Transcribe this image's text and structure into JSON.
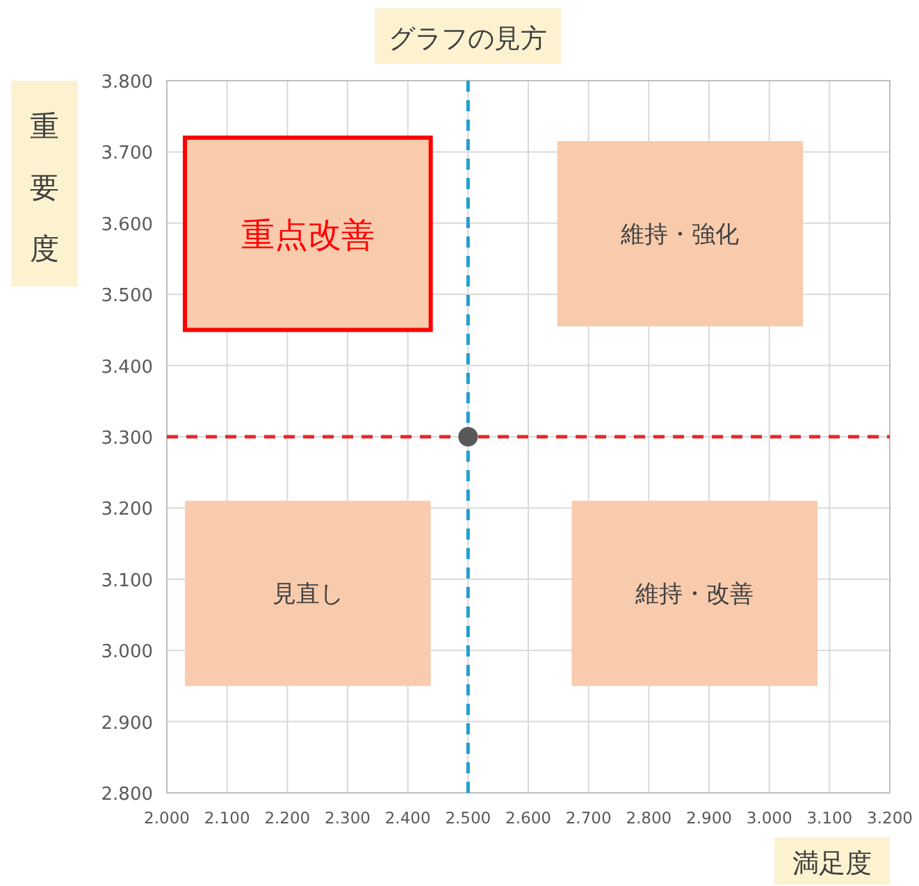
{
  "chart_data": {
    "type": "scatter",
    "title": "グラフの見方",
    "xlabel": "満足度",
    "ylabel": "重要度",
    "x": [
      2.5
    ],
    "series": [
      {
        "color": "#595959",
        "values": [
          3.3
        ]
      }
    ],
    "marker": "circle",
    "xlim": [
      2.0,
      3.2
    ],
    "ylim": [
      2.8,
      3.8
    ],
    "xticks": [
      {
        "value": 2.0,
        "label": "2.000"
      },
      {
        "value": 2.1,
        "label": "2.100"
      },
      {
        "value": 2.2,
        "label": "2.200"
      },
      {
        "value": 2.3,
        "label": "2.300"
      },
      {
        "value": 2.4,
        "label": "2.400"
      },
      {
        "value": 2.5,
        "label": "2.500"
      },
      {
        "value": 2.6,
        "label": "2.600"
      },
      {
        "value": 2.7,
        "label": "2.700"
      },
      {
        "value": 2.8,
        "label": "2.800"
      },
      {
        "value": 2.9,
        "label": "2.900"
      },
      {
        "value": 3.0,
        "label": "3.000"
      },
      {
        "value": 3.1,
        "label": "3.100"
      },
      {
        "value": 3.2,
        "label": "3.200"
      }
    ],
    "yticks": [
      {
        "value": 2.8,
        "label": "2.800"
      },
      {
        "value": 2.9,
        "label": "2.900"
      },
      {
        "value": 3.0,
        "label": "3.000"
      },
      {
        "value": 3.1,
        "label": "3.100"
      },
      {
        "value": 3.2,
        "label": "3.200"
      },
      {
        "value": 3.3,
        "label": "3.300"
      },
      {
        "value": 3.4,
        "label": "3.400"
      },
      {
        "value": 3.5,
        "label": "3.500"
      },
      {
        "value": 3.6,
        "label": "3.600"
      },
      {
        "value": 3.7,
        "label": "3.700"
      },
      {
        "value": 3.8,
        "label": "3.800"
      }
    ],
    "grid": true,
    "ref_lines": [
      {
        "axis": "x",
        "value": 2.5,
        "color": "#1e9fd6",
        "line_style": "dashed"
      },
      {
        "axis": "y",
        "value": 3.3,
        "color": "#e8262a",
        "line_style": "dashed"
      }
    ],
    "annotations": [
      "重点改善",
      "維持・強化",
      "見直し",
      "維持・改善"
    ]
  }
}
